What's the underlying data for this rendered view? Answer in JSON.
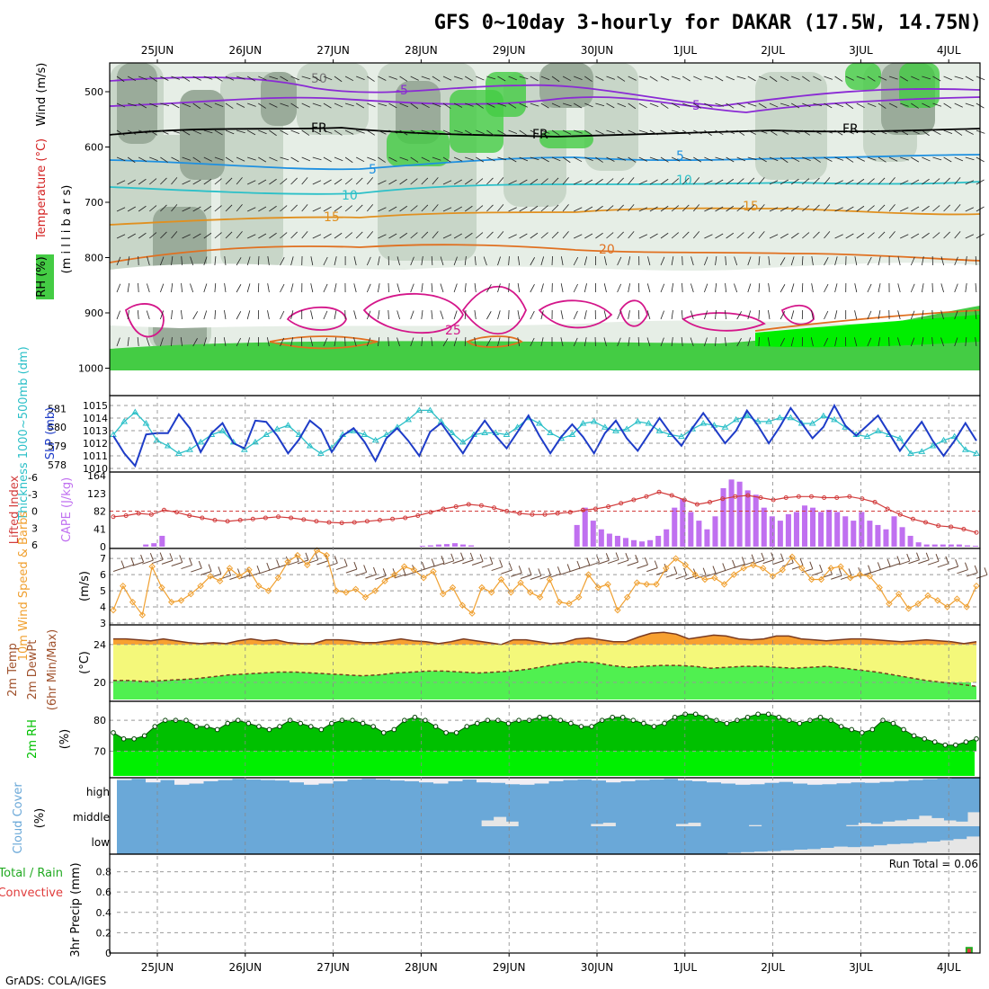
{
  "title": "GFS 0~10day 3-hourly for DAKAR (17.5W, 14.75N)",
  "footer": "GrADS: COLA/IGES",
  "run_total": "Run Total = 0.06",
  "colors": {
    "rh_dark": "#9aab9a",
    "rh_mid": "#c8d6c8",
    "rh_light": "#e6eee6",
    "rh_green": "#44cc44",
    "slp": "#1e3cc8",
    "thickness": "#2cc0c8",
    "cape": "#c070f0",
    "lifted": "#d23c3c",
    "wind10": "#f0a030",
    "temp_fill": "#f7a030",
    "dew_fill": "#f4f87a",
    "dew_green": "#50f050",
    "rh2m": "#00c000",
    "cloud": "#6aa8d8",
    "cloud_clear": "#f2eef4",
    "precip_green": "#22aa22",
    "precip_red": "#e03c3c"
  },
  "panels": {
    "upper": {
      "ylabel_wind": "Wind (m/s)",
      "ylabel_temp": "Temperature (°C)",
      "ylabel_rh": "RH (%)",
      "ylabel_mb": "(m i l l i b a r s)",
      "levels": [
        "500",
        "600",
        "700",
        "800",
        "900",
        "1000"
      ],
      "contour_labels": [
        "50",
        "FR",
        "-5",
        "5",
        "10",
        "15",
        "20",
        "25"
      ]
    },
    "slp": {
      "ylabel_thk": "Thickness 1000~500mb (dm)",
      "ylabel_slp": "SLP (mb)",
      "thk_ticks": [
        "581",
        "580",
        "579",
        "578"
      ],
      "slp_ticks": [
        "1015",
        "1014",
        "1013",
        "1012",
        "1011",
        "1010"
      ]
    },
    "cape": {
      "ylabel_li": "Lifted Index",
      "ylabel_cape": "CAPE (J/kg)",
      "li_ticks": [
        "-6",
        "-3",
        "0",
        "3",
        "6"
      ],
      "cape_ticks": [
        "164",
        "123",
        "82",
        "41",
        "0"
      ]
    },
    "wind10": {
      "ylabel": "10m Wind Speed & Barbs",
      "unit": "(m/s)",
      "ticks": [
        "7",
        "6",
        "5",
        "4",
        "3"
      ]
    },
    "temp2m": {
      "ylabel1": "2m Temp",
      "ylabel2": "2m DewPt",
      "ylabel3": "(6hr Min/Max)",
      "unit": "(°C)",
      "ticks": [
        "24",
        "20"
      ]
    },
    "rh2m": {
      "ylabel": "2m RH",
      "unit": "(%)",
      "ticks": [
        "80",
        "70"
      ]
    },
    "cloud": {
      "ylabel": "Cloud Cover",
      "unit": "(%)",
      "levels": [
        "high",
        "middle",
        "low"
      ]
    },
    "precip": {
      "ylabel1": "3hr Precip (mm)",
      "ylabel2": "Total / Rain",
      "ylabel3": "Convective",
      "ticks": [
        "0.8",
        "0.6",
        "0.4",
        "0.2",
        "0"
      ]
    }
  },
  "chart_data": {
    "type": "line",
    "x_dates": [
      "25JUN",
      "26JUN",
      "27JUN",
      "28JUN",
      "29JUN",
      "30JUN",
      "1JUL",
      "2JUL",
      "3JUL",
      "4JUL"
    ],
    "x_step_hours": 3,
    "slp_mb": [
      1012.6,
      1011.2,
      1010.2,
      1012.7,
      1012.8,
      1012.8,
      1014.3,
      1013.2,
      1011.3,
      1012.8,
      1013.6,
      1012.0,
      1011.6,
      1013.8,
      1013.7,
      1012.6,
      1011.2,
      1012.3,
      1013.8,
      1013.1,
      1011.3,
      1012.6,
      1013.2,
      1012.1,
      1010.6,
      1012.4,
      1013.2,
      1012.2,
      1011.0,
      1012.9,
      1013.6,
      1012.4,
      1011.2,
      1012.6,
      1013.8,
      1012.6,
      1011.6,
      1012.9,
      1014.2,
      1012.6,
      1011.2,
      1012.5,
      1013.5,
      1012.5,
      1011.2,
      1012.8,
      1013.8,
      1012.4,
      1011.4,
      1012.7,
      1014.0,
      1012.8,
      1011.8,
      1013.2,
      1014.4,
      1013.2,
      1012.0,
      1013.0,
      1014.6,
      1013.4,
      1012.0,
      1013.3,
      1014.8,
      1013.6,
      1012.4,
      1013.3,
      1015.0,
      1013.4,
      1012.6,
      1013.4,
      1014.2,
      1012.8,
      1011.4,
      1012.6,
      1013.7,
      1012.2,
      1011.0,
      1012.2,
      1013.6,
      1012.2
    ],
    "thickness_dm": [
      579.6,
      580.3,
      580.8,
      580.2,
      579.3,
      579.0,
      578.6,
      578.8,
      579.2,
      579.6,
      579.8,
      579.2,
      578.8,
      579.2,
      579.6,
      579.9,
      580.1,
      579.6,
      579.0,
      578.6,
      578.9,
      579.6,
      579.8,
      579.6,
      579.3,
      579.6,
      580.0,
      580.4,
      580.9,
      580.9,
      580.3,
      579.7,
      579.2,
      579.6,
      579.7,
      579.7,
      579.6,
      580.0,
      580.5,
      580.2,
      579.7,
      579.4,
      579.6,
      580.2,
      580.3,
      580.0,
      579.8,
      579.9,
      580.3,
      580.2,
      579.8,
      579.6,
      579.5,
      579.9,
      580.2,
      580.1,
      580.0,
      580.4,
      580.6,
      580.3,
      580.3,
      580.5,
      580.5,
      580.2,
      580.2,
      580.6,
      580.4,
      580.0,
      579.6,
      579.5,
      579.8,
      579.6,
      579.4,
      578.6,
      578.7,
      579.0,
      579.3,
      579.5,
      578.8,
      578.6
    ],
    "cape_jkg": [
      0,
      0,
      0,
      0,
      5,
      8,
      25,
      0,
      0,
      0,
      0,
      0,
      0,
      0,
      0,
      0,
      0,
      0,
      0,
      0,
      0,
      0,
      0,
      0,
      0,
      0,
      0,
      0,
      0,
      0,
      0,
      0,
      0,
      0,
      0,
      0,
      0,
      0,
      2,
      3,
      5,
      6,
      8,
      5,
      3,
      0,
      0,
      0,
      0,
      0,
      0,
      0,
      0,
      0,
      0,
      0,
      0,
      50,
      90,
      60,
      40,
      30,
      25,
      20,
      15,
      12,
      15,
      25,
      40,
      90,
      110,
      80,
      60,
      40,
      70,
      135,
      155,
      150,
      130,
      120,
      90,
      70,
      60,
      75,
      80,
      95,
      90,
      80,
      85,
      80,
      70,
      60,
      80,
      60,
      50,
      40,
      70,
      45,
      25,
      10,
      5,
      5,
      5,
      5,
      5,
      3,
      2
    ],
    "lifted_index": [
      1.0,
      0.8,
      0.4,
      0.6,
      -0.2,
      0.2,
      0.8,
      1.2,
      1.6,
      1.8,
      1.6,
      1.4,
      1.2,
      1.0,
      1.2,
      1.5,
      1.8,
      2.0,
      2.1,
      2.0,
      1.8,
      1.6,
      1.4,
      1.2,
      0.8,
      0.2,
      -0.4,
      -0.8,
      -1.2,
      -1.0,
      -0.6,
      0.0,
      0.4,
      0.6,
      0.6,
      0.4,
      0.2,
      -0.2,
      -0.4,
      -0.8,
      -1.4,
      -2.0,
      -2.6,
      -3.4,
      -2.8,
      -2.0,
      -1.2,
      -1.6,
      -2.2,
      -2.6,
      -2.8,
      -2.4,
      -2.0,
      -2.4,
      -2.6,
      -2.6,
      -2.4,
      -2.4,
      -2.6,
      -2.2,
      -1.6,
      -0.4,
      0.6,
      1.4,
      2.0,
      2.6,
      2.8,
      3.2,
      3.8
    ],
    "wind10m_ms": [
      3.8,
      5.3,
      4.3,
      3.5,
      6.5,
      5.2,
      4.3,
      4.4,
      4.8,
      5.3,
      5.9,
      5.6,
      6.4,
      5.9,
      6.3,
      5.3,
      5.0,
      5.8,
      6.8,
      7.2,
      6.6,
      7.5,
      7.2,
      5.0,
      4.9,
      5.1,
      4.6,
      5.0,
      5.6,
      6.0,
      6.5,
      6.3,
      5.8,
      6.2,
      4.8,
      5.2,
      4.1,
      3.6,
      5.2,
      4.9,
      5.7,
      4.9,
      5.5,
      4.9,
      4.6,
      5.7,
      4.3,
      4.2,
      4.6,
      6.0,
      5.2,
      5.4,
      3.8,
      4.6,
      5.5,
      5.4,
      5.4,
      6.4,
      7.0,
      6.6,
      6.0,
      5.7,
      5.8,
      5.4,
      6.0,
      6.4,
      6.6,
      6.4,
      5.9,
      6.3,
      7.1,
      6.4,
      5.7,
      5.7,
      6.4,
      6.5,
      5.8,
      6.0,
      5.9,
      5.2,
      4.2,
      4.8,
      3.9,
      4.2,
      4.7,
      4.4,
      4.0,
      4.5,
      4.0,
      5.3
    ],
    "temp2m_c": [
      24.6,
      24.6,
      24.5,
      24.4,
      24.6,
      24.4,
      24.2,
      24.1,
      24.2,
      24.1,
      24.4,
      24.6,
      24.4,
      24.5,
      24.2,
      24.1,
      24.1,
      24.5,
      24.5,
      24.4,
      24.2,
      24.2,
      24.4,
      24.6,
      24.4,
      24.3,
      24.1,
      24.3,
      24.6,
      24.4,
      24.2,
      24.0,
      24.5,
      24.5,
      24.3,
      24.1,
      24.2,
      24.6,
      24.7,
      24.5,
      24.3,
      24.3,
      24.8,
      25.2,
      25.3,
      25.1,
      24.6,
      24.8,
      25.0,
      24.9,
      24.6,
      24.5,
      24.6,
      24.9,
      24.9,
      24.6,
      24.5,
      24.4,
      24.5,
      24.6,
      24.6,
      24.5,
      24.4,
      24.3,
      24.4,
      24.5,
      24.4,
      24.3,
      24.1,
      24.3
    ],
    "dewpt2m_c": [
      20.2,
      20.2,
      20.1,
      20.2,
      20.3,
      20.4,
      20.6,
      20.8,
      20.9,
      21.0,
      21.1,
      21.1,
      21.0,
      20.9,
      20.8,
      20.7,
      20.8,
      21.0,
      21.1,
      21.2,
      21.2,
      21.1,
      21.0,
      21.1,
      21.2,
      21.4,
      21.7,
      22.0,
      22.2,
      22.1,
      21.8,
      21.6,
      21.7,
      21.8,
      21.8,
      21.7,
      21.5,
      21.6,
      21.7,
      21.7,
      21.6,
      21.5,
      21.6,
      21.7,
      21.5,
      21.3,
      21.1,
      20.8,
      20.5,
      20.2,
      20.0,
      19.8,
      19.6
    ],
    "rh2m_pct": [
      76,
      74,
      74,
      75,
      78,
      80,
      80,
      80,
      78,
      78,
      77,
      79,
      80,
      79,
      78,
      77,
      78,
      80,
      79,
      78,
      77,
      79,
      80,
      80,
      79,
      78,
      76,
      77,
      80,
      81,
      80,
      78,
      76,
      76,
      78,
      79,
      80,
      80,
      79,
      80,
      80,
      81,
      81,
      80,
      79,
      78,
      78,
      80,
      81,
      81,
      80,
      79,
      78,
      79,
      81,
      82,
      82,
      81,
      80,
      79,
      80,
      81,
      82,
      82,
      81,
      80,
      79,
      80,
      81,
      80,
      78,
      77,
      76,
      77,
      80,
      79,
      77,
      75,
      74,
      73,
      72,
      72,
      73,
      74
    ],
    "cloud_high_pct": [
      90,
      95,
      80,
      90,
      70,
      75,
      85,
      90,
      95,
      92,
      90,
      88,
      80,
      70,
      75,
      85,
      92,
      95,
      92,
      88,
      85,
      80,
      75,
      85,
      92,
      80,
      78,
      72,
      70,
      75,
      85,
      90,
      92,
      88,
      80,
      85,
      90,
      92,
      95,
      88,
      85,
      80,
      75,
      70,
      72,
      78,
      82,
      75,
      70,
      72,
      76,
      80,
      78,
      82,
      86,
      90,
      94,
      96,
      98,
      98
    ],
    "cloud_mid_pct": [
      0,
      0,
      0,
      0,
      0,
      0,
      0,
      0,
      0,
      0,
      0,
      0,
      0,
      0,
      0,
      0,
      0,
      0,
      0,
      0,
      0,
      0,
      0,
      0,
      0,
      0,
      0,
      0,
      0,
      0,
      25,
      40,
      20,
      0,
      0,
      0,
      0,
      0,
      0,
      10,
      15,
      0,
      0,
      0,
      0,
      0,
      10,
      15,
      0,
      0,
      0,
      0,
      5,
      0,
      0,
      0,
      0,
      0,
      0,
      0,
      5,
      15,
      10,
      20,
      25,
      30,
      45,
      35,
      25,
      20,
      60
    ],
    "cloud_low_pct": [
      0,
      0,
      0,
      0,
      0,
      0,
      0,
      0,
      0,
      0,
      0,
      0,
      0,
      0,
      0,
      0,
      0,
      0,
      0,
      0,
      0,
      0,
      0,
      0,
      0,
      0,
      0,
      0,
      0,
      0,
      0,
      0,
      0,
      0,
      0,
      0,
      0,
      0,
      0,
      0,
      0,
      0,
      0,
      0,
      0,
      0,
      5,
      8,
      10,
      12,
      15,
      18,
      20,
      25,
      30,
      28,
      30,
      35,
      40,
      42,
      45,
      50,
      55,
      60,
      70
    ],
    "precip_mm": {
      "total_run": 0.06,
      "day_index": 9.6,
      "value": 0.06
    }
  }
}
